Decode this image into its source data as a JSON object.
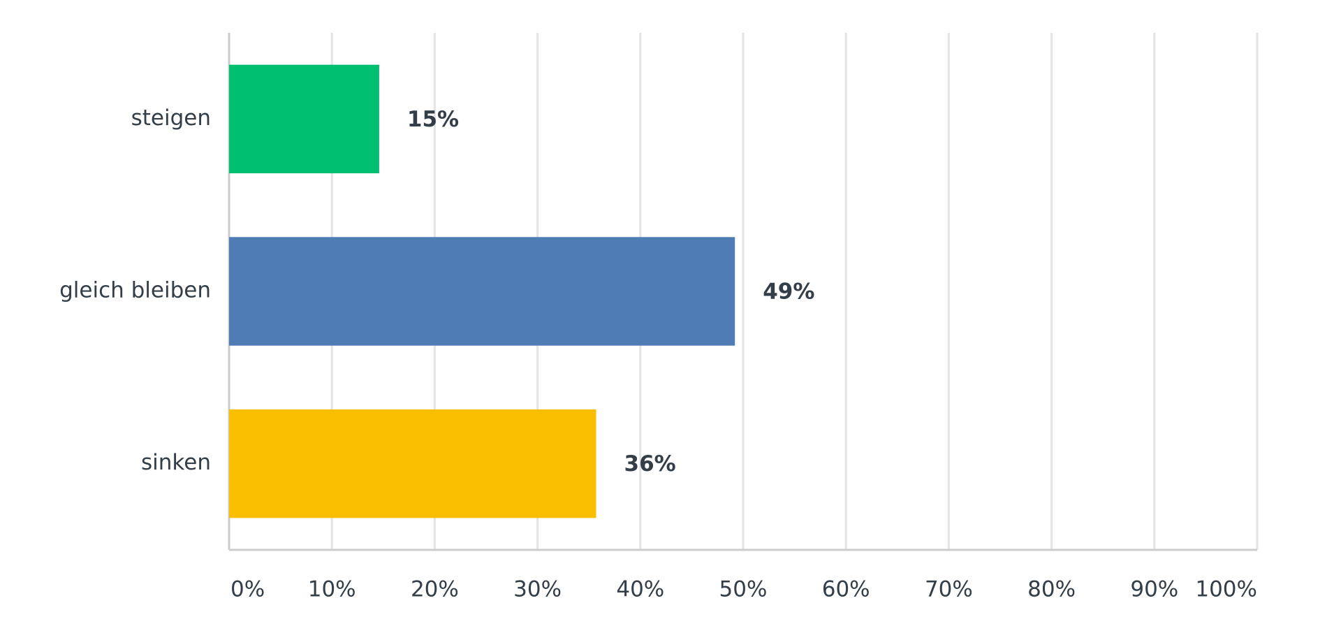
{
  "chart_data": {
    "type": "hbar",
    "categories": [
      "steigen",
      "gleich bleiben",
      "sinken"
    ],
    "values": [
      14.6,
      49.2,
      35.7
    ],
    "value_labels": [
      "15%",
      "49%",
      "36%"
    ],
    "colors": [
      "#00bf6f",
      "#507cb6",
      "#f9be00"
    ],
    "xlim": [
      0,
      100
    ],
    "xticks": [
      {
        "value": 0,
        "label": "0%"
      },
      {
        "value": 10,
        "label": "10%"
      },
      {
        "value": 20,
        "label": "20%"
      },
      {
        "value": 30,
        "label": "30%"
      },
      {
        "value": 40,
        "label": "40%"
      },
      {
        "value": 50,
        "label": "50%"
      },
      {
        "value": 60,
        "label": "60%"
      },
      {
        "value": 70,
        "label": "70%"
      },
      {
        "value": 80,
        "label": "80%"
      },
      {
        "value": 90,
        "label": "90%"
      },
      {
        "value": 100,
        "label": "100%"
      }
    ],
    "grid": true
  }
}
